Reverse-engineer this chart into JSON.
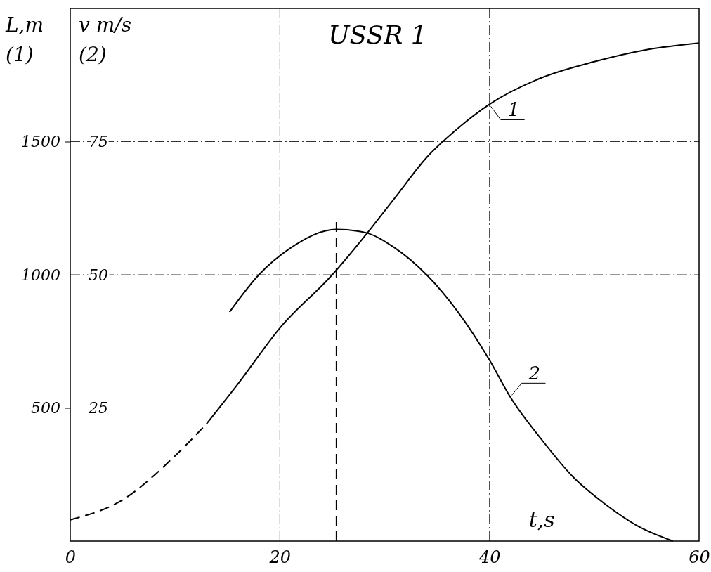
{
  "chart_data": {
    "type": "line",
    "title": "USSR 1",
    "xlabel": "t,s",
    "ylabel": "L,m\n(1)",
    "y2label": "v m/s\n(2)",
    "xlim": [
      0,
      60
    ],
    "xticks": [
      0,
      20,
      40,
      60
    ],
    "ylim": [
      0,
      2000
    ],
    "yticks": [
      500,
      1000,
      1500
    ],
    "y2lim": [
      0,
      100
    ],
    "y2ticks": [
      25,
      50,
      75
    ],
    "grid": true,
    "marker": "none",
    "series": [
      {
        "color": "#000000",
        "line_style": "dashed",
        "x": [
          0,
          5,
          10,
          13
        ],
        "values": [
          80,
          155,
          320,
          440
        ]
      },
      {
        "name": "1",
        "color": "#000000",
        "line_style": "solid",
        "x": [
          13,
          16,
          20,
          25,
          28,
          31,
          34,
          37,
          40,
          45,
          50,
          55,
          60
        ],
        "values": [
          440,
          590,
          800,
          1000,
          1140,
          1290,
          1440,
          1550,
          1640,
          1740,
          1800,
          1845,
          1870
        ]
      },
      {
        "name": "2",
        "color": "#000000",
        "line_style": "solid",
        "axis": "y2",
        "x": [
          15.2,
          18,
          21,
          25.4,
          28,
          31,
          34,
          37,
          40,
          42,
          45,
          48,
          51,
          54,
          57.5
        ],
        "values": [
          43,
          50,
          55,
          58.5,
          58,
          55,
          50,
          43,
          34,
          27,
          19,
          12,
          7,
          3,
          0
        ]
      }
    ],
    "ref_lines": [
      {
        "axis": "x",
        "value": 25.4,
        "line_style": "dashed",
        "color": "#000000"
      }
    ]
  }
}
